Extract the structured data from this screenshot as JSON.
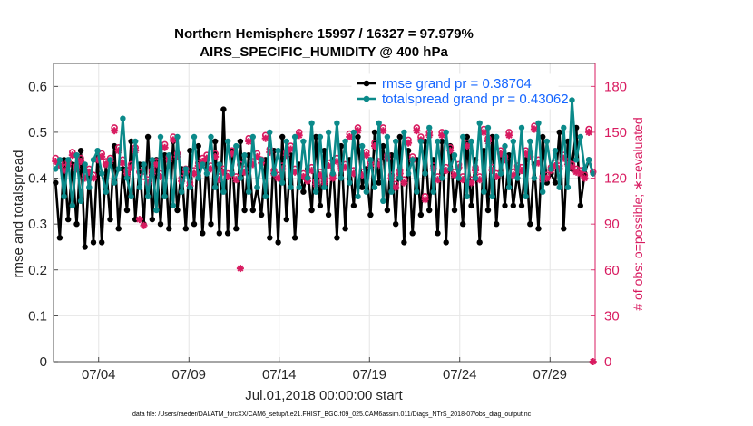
{
  "chart_data": {
    "type": "line",
    "title": "Northern Hemisphere 15997 / 16327 = 97.979%",
    "subtitle": "AIRS_SPECIFIC_HUMIDITY @ 400 hPa",
    "xlabel": "Jul.01,2018 00:00:00 start",
    "ylabel": "rmse and totalspread",
    "ylabel_right": "# of obs: o=possible; ∗=evaluated",
    "ylim": [
      0,
      0.65
    ],
    "ylim_right": [
      0,
      195
    ],
    "xlim": [
      0.5,
      30.5
    ],
    "x_ticks": [
      3,
      8,
      13,
      18,
      23,
      28
    ],
    "x_tick_labels": [
      "07/04",
      "07/09",
      "07/14",
      "07/19",
      "07/24",
      "07/29"
    ],
    "y_ticks": [
      0,
      0.1,
      0.2,
      0.3,
      0.4,
      0.5,
      0.6
    ],
    "y_tick_labels": [
      "0",
      "0.1",
      "0.2",
      "0.3",
      "0.4",
      "0.5",
      "0.6"
    ],
    "y2_ticks": [
      0,
      30,
      60,
      90,
      120,
      150,
      180
    ],
    "y2_tick_labels": [
      "0",
      "30",
      "60",
      "90",
      "120",
      "150",
      "180"
    ],
    "grid": true,
    "legend_position": "top-right",
    "footnote": "data file: /Users/raeder/DAI/ATM_forcXX/CAM6_setup/f.e21.FHIST_BGC.f09_025.CAM6assim.011/Diags_NTrS_2018-07/obs_diag_output.nc",
    "colors": {
      "rmse": "#000000",
      "spread": "#0b8a8a",
      "obs": "#d81b60",
      "legend_text": "#1565ff"
    },
    "series": [
      {
        "name": "rmse grand pr = 0.38704",
        "values": [
          0.39,
          0.27,
          0.44,
          0.31,
          0.43,
          0.3,
          0.46,
          0.25,
          0.41,
          0.26,
          0.45,
          0.26,
          0.43,
          0.31,
          0.47,
          0.29,
          0.42,
          0.33,
          0.48,
          0.31,
          0.43,
          0.3,
          0.49,
          0.31,
          0.44,
          0.3,
          0.45,
          0.29,
          0.48,
          0.33,
          0.42,
          0.29,
          0.46,
          0.3,
          0.47,
          0.28,
          0.44,
          0.3,
          0.48,
          0.28,
          0.55,
          0.28,
          0.46,
          0.29,
          0.48,
          0.33,
          0.45,
          0.33,
          0.38,
          0.32,
          0.44,
          0.27,
          0.46,
          0.26,
          0.49,
          0.31,
          0.45,
          0.27,
          0.43,
          0.37,
          0.42,
          0.33,
          0.49,
          0.34,
          0.46,
          0.32,
          0.44,
          0.27,
          0.47,
          0.29,
          0.44,
          0.34,
          0.49,
          0.38,
          0.42,
          0.32,
          0.5,
          0.39,
          0.47,
          0.33,
          0.45,
          0.3,
          0.49,
          0.26,
          0.46,
          0.28,
          0.44,
          0.32,
          0.48,
          0.33,
          0.44,
          0.28,
          0.48,
          0.26,
          0.47,
          0.33,
          0.42,
          0.3,
          0.49,
          0.34,
          0.44,
          0.26,
          0.46,
          0.33,
          0.49,
          0.3,
          0.45,
          0.34,
          0.45,
          0.34,
          0.41,
          0.34,
          0.44,
          0.3,
          0.43,
          0.29,
          0.49,
          0.39,
          0.41,
          0.39,
          0.5,
          0.29,
          0.48,
          0.42,
          0.51,
          0.34,
          0.41,
          0.44,
          0.41
        ]
      },
      {
        "name": "totalspread grand pr = 0.43062",
        "values": [
          0.42,
          0.44,
          0.36,
          0.44,
          0.34,
          0.45,
          0.35,
          0.43,
          0.38,
          0.44,
          0.46,
          0.41,
          0.37,
          0.44,
          0.39,
          0.42,
          0.53,
          0.4,
          0.36,
          0.48,
          0.38,
          0.43,
          0.36,
          0.44,
          0.33,
          0.49,
          0.36,
          0.45,
          0.34,
          0.49,
          0.37,
          0.42,
          0.38,
          0.49,
          0.4,
          0.43,
          0.41,
          0.49,
          0.38,
          0.43,
          0.37,
          0.48,
          0.41,
          0.47,
          0.4,
          0.45,
          0.37,
          0.49,
          0.38,
          0.44,
          0.36,
          0.5,
          0.41,
          0.46,
          0.39,
          0.48,
          0.38,
          0.49,
          0.38,
          0.48,
          0.4,
          0.52,
          0.37,
          0.49,
          0.38,
          0.5,
          0.41,
          0.52,
          0.4,
          0.48,
          0.39,
          0.5,
          0.36,
          0.47,
          0.37,
          0.44,
          0.38,
          0.52,
          0.35,
          0.49,
          0.37,
          0.48,
          0.4,
          0.5,
          0.41,
          0.44,
          0.37,
          0.48,
          0.41,
          0.51,
          0.37,
          0.48,
          0.4,
          0.5,
          0.42,
          0.45,
          0.4,
          0.49,
          0.36,
          0.48,
          0.4,
          0.52,
          0.37,
          0.51,
          0.36,
          0.49,
          0.41,
          0.47,
          0.38,
          0.48,
          0.4,
          0.51,
          0.36,
          0.48,
          0.4,
          0.52,
          0.37,
          0.48,
          0.42,
          0.46,
          0.38,
          0.51,
          0.38,
          0.57,
          0.44,
          0.49,
          0.42,
          0.44,
          0.41
        ]
      },
      {
        "name": "possible obs",
        "marker": "o",
        "values": [
          133,
          130,
          127,
          131,
          137,
          128,
          133,
          122,
          126,
          122,
          134,
          136,
          131,
          133,
          153,
          140,
          132,
          125,
          129,
          140,
          124,
          121,
          119,
          125,
          131,
          123,
          142,
          134,
          147,
          136,
          120,
          126,
          117,
          125,
          130,
          133,
          135,
          128,
          136,
          121,
          126,
          123,
          138,
          121,
          129,
          126,
          146,
          131,
          136,
          132,
          148,
          139,
          125,
          122,
          128,
          137,
          141,
          126,
          150,
          123,
          120,
          127,
          118,
          124,
          119,
          130,
          122,
          133,
          128,
          129,
          149,
          125,
          153,
          124,
          137,
          130,
          143,
          131,
          153,
          135,
          122,
          116,
          125,
          119,
          145,
          134,
          153,
          147,
          108,
          150,
          128,
          121,
          150,
          127,
          140,
          124,
          129,
          121,
          143,
          119,
          127,
          121,
          152,
          146,
          127,
          123,
          138,
          134,
          150,
          124,
          128,
          127,
          138,
          136,
          154,
          132,
          121,
          122,
          127,
          130,
          128,
          135,
          131,
          129,
          126,
          125,
          122,
          152,
          124
        ]
      },
      {
        "name": "evaluated obs",
        "marker": "*",
        "values": [
          131,
          128,
          125,
          129,
          135,
          126,
          131,
          120,
          124,
          120,
          132,
          134,
          129,
          131,
          151,
          138,
          130,
          123,
          127,
          138,
          93,
          89,
          117,
          123,
          129,
          121,
          140,
          132,
          145,
          134,
          118,
          124,
          115,
          123,
          128,
          131,
          133,
          126,
          134,
          119,
          124,
          121,
          136,
          119,
          61,
          124,
          144,
          129,
          134,
          130,
          146,
          137,
          123,
          120,
          126,
          135,
          139,
          124,
          148,
          121,
          118,
          125,
          116,
          122,
          117,
          128,
          120,
          131,
          126,
          127,
          147,
          123,
          151,
          122,
          135,
          128,
          141,
          129,
          151,
          133,
          120,
          114,
          123,
          117,
          143,
          132,
          151,
          145,
          106,
          148,
          126,
          119,
          148,
          125,
          138,
          122,
          127,
          119,
          141,
          117,
          125,
          119,
          150,
          144,
          125,
          121,
          136,
          132,
          148,
          122,
          126,
          125,
          136,
          134,
          152,
          130,
          119,
          120,
          125,
          128,
          126,
          133,
          129,
          127,
          124,
          123,
          120,
          150,
          0
        ]
      }
    ]
  }
}
